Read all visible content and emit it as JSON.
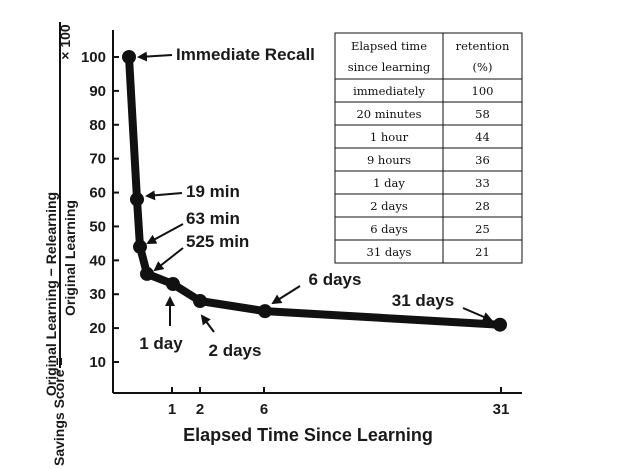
{
  "chart_data": {
    "type": "line",
    "title": "",
    "xlabel": "Elapsed Time Since Learning",
    "ylabel": {
      "prefix": "Savings Score =",
      "numerator": "Original Learning − Relearning",
      "denominator": "Original Learning",
      "suffix": "× 100"
    },
    "yticks": [
      100,
      90,
      80,
      70,
      60,
      50,
      40,
      30,
      20,
      10
    ],
    "xticks": [
      "1",
      "2",
      "6",
      "31"
    ],
    "series": [
      {
        "name": "Savings",
        "points": [
          {
            "label": "Immediate Recall",
            "y": 100
          },
          {
            "label": "19 min",
            "y": 58
          },
          {
            "label": "63 min",
            "y": 44
          },
          {
            "label": "525 min",
            "y": 36
          },
          {
            "label": "1 day",
            "y": 33
          },
          {
            "label": "2 days",
            "y": 28
          },
          {
            "label": "6 days",
            "y": 25
          },
          {
            "label": "31 days",
            "y": 21
          }
        ]
      }
    ],
    "annotations": [
      "Immediate Recall",
      "19 min",
      "63 min",
      "525 min",
      "1 day",
      "2 days",
      "6 days",
      "31 days"
    ],
    "table": {
      "headers": [
        [
          "Elapsed time",
          "since learning"
        ],
        [
          "retention",
          "(%)"
        ]
      ],
      "rows": [
        [
          "immediately",
          "100"
        ],
        [
          "20 minutes",
          "58"
        ],
        [
          "1 hour",
          "44"
        ],
        [
          "9 hours",
          "36"
        ],
        [
          "1 day",
          "33"
        ],
        [
          "2 days",
          "28"
        ],
        [
          "6 days",
          "25"
        ],
        [
          "31 days",
          "21"
        ]
      ]
    }
  }
}
